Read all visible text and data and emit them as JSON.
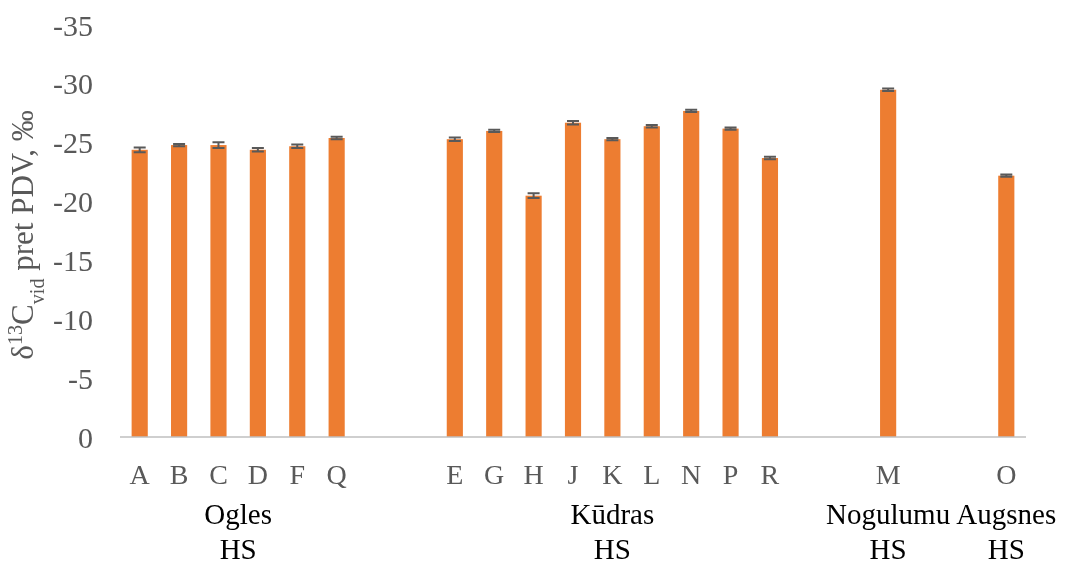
{
  "chart_data": {
    "type": "bar",
    "ylabel": "δ$^{13}$C$_{vid}$ pret PDV, ‰",
    "categories": [
      "A",
      "B",
      "C",
      "D",
      "F",
      "Q",
      null,
      null,
      "E",
      "G",
      "H",
      "J",
      "K",
      "L",
      "N",
      "P",
      "R",
      null,
      null,
      "M",
      null,
      null,
      "O"
    ],
    "values": [
      -24.4,
      -24.8,
      -24.8,
      -24.4,
      -24.7,
      -25.4,
      null,
      null,
      -25.3,
      -26.0,
      -20.5,
      -26.7,
      -25.3,
      -26.4,
      -27.7,
      -26.2,
      -23.7,
      null,
      null,
      -29.5,
      null,
      null,
      -22.2
    ],
    "errors": [
      0.2,
      0.1,
      0.25,
      0.15,
      0.15,
      0.1,
      null,
      null,
      0.15,
      0.1,
      0.2,
      0.15,
      0.1,
      0.1,
      0.1,
      0.1,
      0.1,
      null,
      null,
      0.1,
      null,
      null,
      0.1
    ],
    "color": "#ed7d31",
    "ylim": [
      0,
      -35
    ],
    "yticks": [
      0,
      -5,
      -10,
      -15,
      -20,
      -25,
      -30,
      -35
    ],
    "annotations": [
      "Ogles HS",
      "Kūdras HS",
      "Nogulumu HS",
      "Augsnes HS"
    ]
  }
}
